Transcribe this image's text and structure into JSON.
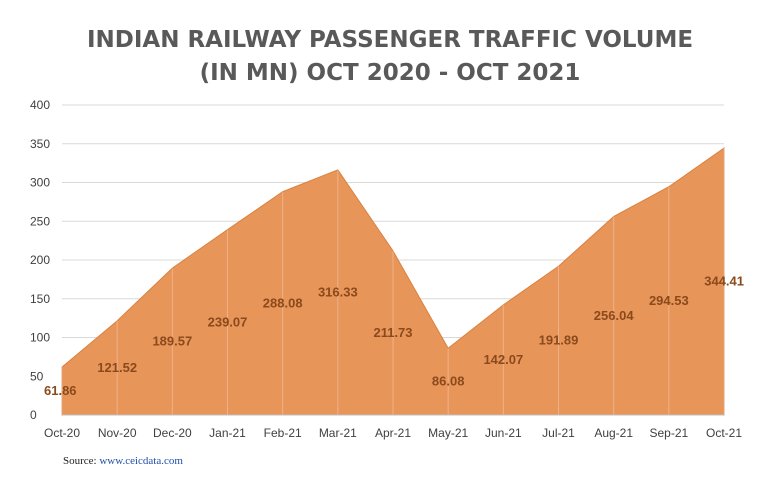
{
  "chart_data": {
    "type": "area",
    "title_lines": [
      "INDIAN RAILWAY PASSENGER TRAFFIC VOLUME",
      "(IN MN) OCT 2020 - OCT 2021"
    ],
    "categories": [
      "Oct-20",
      "Nov-20",
      "Dec-20",
      "Jan-21",
      "Feb-21",
      "Mar-21",
      "Apr-21",
      "May-21",
      "Jun-21",
      "Jul-21",
      "Aug-21",
      "Sep-21",
      "Oct-21"
    ],
    "values": [
      61.86,
      121.52,
      189.57,
      239.07,
      288.08,
      316.33,
      211.73,
      86.08,
      142.07,
      191.89,
      256.04,
      294.53,
      344.41
    ],
    "data_labels": [
      "61.86",
      "121.52",
      "189.57",
      "239.07",
      "288.08",
      "316.33",
      "211.73",
      "86.08",
      "142.07",
      "191.89",
      "256.04",
      "294.53",
      "344.41"
    ],
    "ylim": [
      0,
      400
    ],
    "yticks": [
      "0",
      "50",
      "100",
      "150",
      "200",
      "250",
      "300",
      "350",
      "400"
    ],
    "grid": true,
    "legend": "none",
    "colors": {
      "fill": "#E8955A",
      "edge": "#D9823F",
      "data_label": "#8B4A1C",
      "grid": "#D9D9D9",
      "tick_label": "#404040"
    }
  },
  "source": {
    "prefix": "Source: ",
    "link": "www.ceicdata.com"
  }
}
